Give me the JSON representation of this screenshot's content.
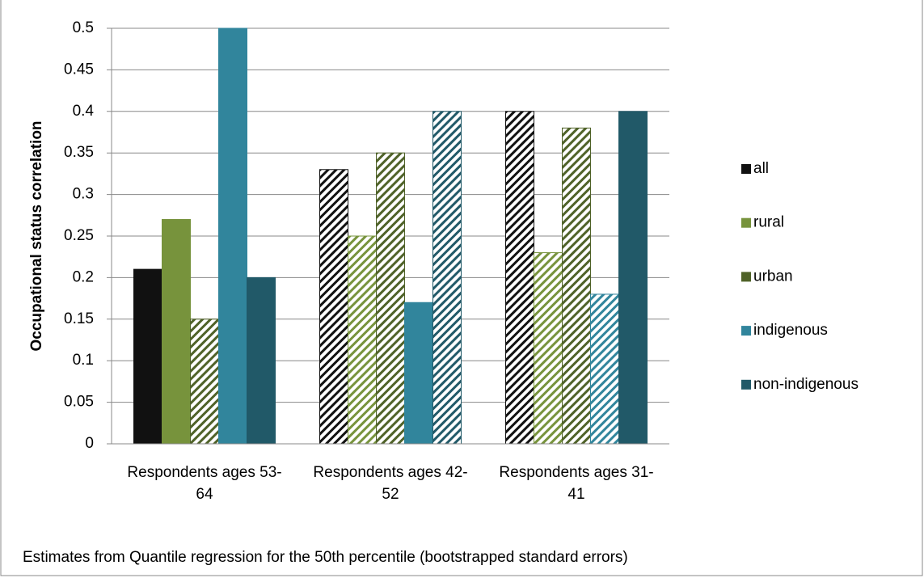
{
  "chart_data": {
    "type": "bar",
    "y_label": "Occupational status correlation",
    "note": "Estimates from Quantile regression for the 50th percentile  (bootstrapped standard errors)",
    "categories": [
      "Respondents ages 53-64",
      "Respondents ages 42-52",
      "Respondents ages 31-41"
    ],
    "series": [
      {
        "name": "all",
        "color": "#111111",
        "values": [
          0.21,
          0.33,
          0.4
        ],
        "hatched": [
          false,
          true,
          true
        ]
      },
      {
        "name": "rural",
        "color": "#77933c",
        "values": [
          0.27,
          0.25,
          0.23
        ],
        "hatched": [
          false,
          true,
          true
        ]
      },
      {
        "name": "urban",
        "color": "#4f6228",
        "values": [
          0.15,
          0.35,
          0.38
        ],
        "hatched": [
          true,
          true,
          true
        ]
      },
      {
        "name": "indigenous",
        "color": "#31859c",
        "values": [
          0.5,
          0.17,
          0.18
        ],
        "hatched": [
          false,
          false,
          true
        ]
      },
      {
        "name": "non-indigenous",
        "color": "#215968",
        "values": [
          0.2,
          0.4,
          0.4
        ],
        "hatched": [
          false,
          true,
          false
        ]
      }
    ],
    "ylim": [
      0,
      0.5
    ],
    "yticks": [
      0,
      0.05,
      0.1,
      0.15,
      0.2,
      0.25,
      0.3,
      0.35,
      0.4,
      0.45,
      0.5
    ],
    "grid": true,
    "legend": "right"
  }
}
